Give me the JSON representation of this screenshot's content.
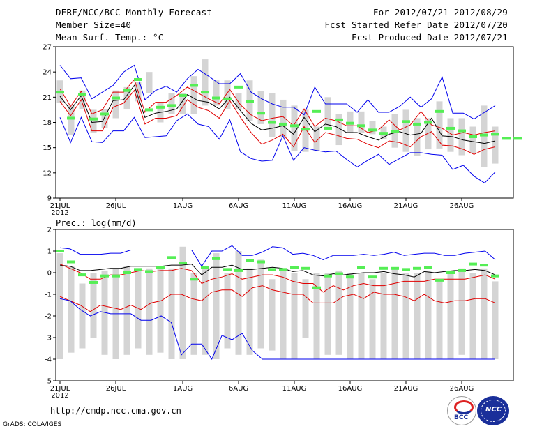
{
  "header": {
    "title": "DERF/NCC/BCC Monthly Forecast",
    "member_size": "Member Size=40",
    "variable": "Mean Surf. Temp.: °C",
    "period": "For 2012/07/21-2012/08/29",
    "started": "Fcst Started Refer Date 2012/07/20",
    "produced": "Fcst Produced Date 2012/07/21"
  },
  "footer": {
    "url": "http://cmdp.ncc.cma.gov.cn",
    "grads": "GrADS: COLA/IGES",
    "logo_bcc": "BCC",
    "logo_ncc": "NCC"
  },
  "colors": {
    "envelope": "#0000ee",
    "spread": "#e00000",
    "mean": "#000000",
    "box": "#d4d4d4",
    "observed": "#55ee55"
  },
  "chart_data": [
    {
      "type": "line",
      "title": "Mean Surf. Temp.: °C",
      "ylim": [
        9,
        27
      ],
      "yticks": [
        9,
        12,
        15,
        18,
        21,
        24,
        27
      ],
      "x_tick_labels": [
        "21JUL",
        "26JUL",
        "1AUG",
        "6AUG",
        "11AUG",
        "16AUG",
        "21AUG",
        "26AUG"
      ],
      "x_tick_days": [
        0,
        5,
        11,
        16,
        21,
        26,
        31,
        36
      ],
      "year_label": "2012",
      "box_min": [
        20.3,
        16.5,
        19.6,
        16.8,
        17.3,
        18.5,
        19.6,
        20.5,
        21.5,
        18.0,
        19.0,
        19.0,
        19.0,
        20.0,
        20.0,
        19.6,
        19.6,
        18.2,
        17.8,
        16.3,
        16.2,
        14.6,
        14.5,
        14.6,
        17.5,
        15.3,
        16.8,
        16.8,
        16.6,
        16.0,
        15.0,
        14.5,
        14.0,
        14.8,
        14.9,
        14.5,
        14.1,
        14.3,
        12.7,
        13.1
      ],
      "box_max": [
        23.0,
        20.0,
        21.8,
        19.5,
        19.6,
        21.8,
        22.2,
        22.8,
        24.0,
        20.3,
        21.5,
        21.5,
        23.5,
        25.5,
        23.0,
        23.0,
        21.5,
        23.0,
        21.7,
        21.5,
        20.7,
        20.0,
        19.5,
        17.5,
        21.0,
        19.0,
        19.3,
        19.3,
        18.2,
        17.5,
        19.0,
        19.5,
        18.5,
        18.5,
        20.5,
        18.5,
        18.5,
        17.5,
        20.0,
        17.5
      ],
      "series": [
        {
          "name": "max",
          "values": [
            24.8,
            23.2,
            23.3,
            20.8,
            21.6,
            22.4,
            24.0,
            24.8,
            20.7,
            21.8,
            22.3,
            21.6,
            23.2,
            24.3,
            23.5,
            22.6,
            22.6,
            23.8,
            21.6,
            20.8,
            20.2,
            19.8,
            19.8,
            18.9,
            22.2,
            20.2,
            20.2,
            20.2,
            19.2,
            20.7,
            19.2,
            19.2,
            19.9,
            21.0,
            19.8,
            20.8,
            23.4,
            19.1,
            19.1,
            18.4,
            19.2,
            20.0
          ]
        },
        {
          "name": "upper",
          "values": [
            22.0,
            19.9,
            21.7,
            19.0,
            19.5,
            21.6,
            21.6,
            23.1,
            19.2,
            20.4,
            20.4,
            21.2,
            22.2,
            21.5,
            20.8,
            20.2,
            21.9,
            20.1,
            18.9,
            18.2,
            18.5,
            18.7,
            17.6,
            19.6,
            17.5,
            18.5,
            18.2,
            17.6,
            17.6,
            16.8,
            17.1,
            18.3,
            17.1,
            17.7,
            19.3,
            17.7,
            17.3,
            16.5,
            16.8,
            16.5,
            16.8,
            17.0
          ]
        },
        {
          "name": "mean",
          "values": [
            21.1,
            19.5,
            21.2,
            18.0,
            18.1,
            20.6,
            20.7,
            22.4,
            18.6,
            19.1,
            19.3,
            19.6,
            21.3,
            20.6,
            20.4,
            19.6,
            21.0,
            19.4,
            17.9,
            17.1,
            17.3,
            17.6,
            16.6,
            18.6,
            16.9,
            17.8,
            17.5,
            16.8,
            16.8,
            16.3,
            15.9,
            16.6,
            16.9,
            16.5,
            16.7,
            18.5,
            16.4,
            16.3,
            15.9,
            15.7,
            15.5,
            15.8
          ]
        },
        {
          "name": "lower",
          "values": [
            20.5,
            18.8,
            20.7,
            17.0,
            17.0,
            19.8,
            20.3,
            21.8,
            17.8,
            18.5,
            18.5,
            18.8,
            20.7,
            19.8,
            19.4,
            18.5,
            20.6,
            18.6,
            16.8,
            15.4,
            15.9,
            16.6,
            15.1,
            17.5,
            15.6,
            16.8,
            16.5,
            16.1,
            16.0,
            15.4,
            15.0,
            15.8,
            15.6,
            15.1,
            16.3,
            16.9,
            15.3,
            15.2,
            14.8,
            14.2,
            14.8,
            15.1
          ]
        },
        {
          "name": "min",
          "values": [
            18.6,
            15.6,
            18.6,
            15.7,
            15.6,
            17.0,
            17.0,
            18.6,
            16.2,
            16.3,
            16.4,
            18.2,
            19.0,
            17.8,
            17.5,
            16.0,
            18.3,
            14.5,
            13.7,
            13.4,
            13.5,
            16.4,
            13.5,
            15.0,
            14.7,
            14.5,
            14.6,
            13.6,
            12.7,
            13.5,
            14.2,
            13.0,
            13.7,
            14.4,
            14.4,
            14.2,
            14.1,
            12.4,
            12.9,
            11.6,
            10.8,
            12.1
          ]
        },
        {
          "name": "observed",
          "values": [
            21.6,
            18.5,
            21.3,
            18.4,
            19.0,
            20.9,
            21.8,
            23.1,
            19.5,
            19.8,
            20.0,
            21.2,
            22.4,
            21.6,
            20.9,
            20.8,
            22.2,
            20.5,
            19.1,
            18.0,
            17.8,
            17.6,
            17.2,
            19.3,
            17.3,
            18.3,
            17.9,
            17.6,
            17.1,
            16.7,
            16.9,
            18.1,
            17.8,
            18.0,
            19.3,
            17.3,
            17.0,
            16.3,
            16.5,
            16.6,
            16.1,
            16.1
          ]
        }
      ]
    },
    {
      "type": "line",
      "title": "Prec.: log(mm/d)",
      "ylim": [
        -5,
        2
      ],
      "yticks": [
        -5,
        -4,
        -3,
        -2,
        -1,
        0,
        1,
        2
      ],
      "x_tick_labels": [
        "21JUL",
        "26JUL",
        "1AUG",
        "6AUG",
        "11AUG",
        "16AUG",
        "21AUG",
        "26AUG"
      ],
      "x_tick_days": [
        0,
        5,
        11,
        16,
        21,
        26,
        31,
        36
      ],
      "year_label": "2012",
      "box_min": [
        -4.0,
        -3.7,
        -3.5,
        -3.0,
        -3.8,
        -4.0,
        -3.8,
        -3.5,
        -3.8,
        -3.7,
        -4.0,
        -4.0,
        -3.8,
        -3.8,
        -4.0,
        -3.5,
        -3.8,
        -3.8,
        -3.5,
        -3.6,
        -4.0,
        -4.0,
        -3.0,
        -4.0,
        -3.8,
        -3.8,
        -4.0,
        -4.0,
        -4.0,
        -4.0,
        -4.0,
        -4.0,
        -4.0,
        -4.0,
        -4.0,
        -4.0,
        -3.8,
        -4.0,
        -4.0,
        -4.0
      ],
      "box_max": [
        0.9,
        0.3,
        -0.5,
        0.0,
        0.1,
        0.2,
        0.3,
        0.1,
        0.2,
        0.3,
        0.2,
        1.2,
        0.0,
        0.2,
        0.9,
        0.0,
        1.0,
        0.2,
        0.6,
        -0.3,
        0.2,
        0.0,
        -0.3,
        0.0,
        0.0,
        0.1,
        0.0,
        0.0,
        -0.3,
        0.0,
        0.2,
        0.0,
        0.0,
        0.1,
        -0.3,
        0.1,
        0.2,
        0.0,
        0.2,
        -0.4
      ],
      "series": [
        {
          "name": "max",
          "values": [
            1.15,
            1.1,
            0.85,
            0.85,
            0.85,
            0.9,
            0.9,
            1.05,
            1.05,
            1.05,
            1.05,
            1.05,
            1.05,
            1.05,
            0.3,
            1.0,
            1.0,
            1.25,
            0.8,
            0.8,
            0.95,
            1.2,
            1.15,
            0.85,
            0.9,
            0.8,
            0.6,
            0.8,
            0.8,
            0.8,
            0.85,
            0.8,
            0.85,
            0.95,
            0.8,
            0.85,
            0.9,
            0.9,
            0.8,
            0.8,
            0.9,
            0.95,
            1.0,
            0.6
          ]
        },
        {
          "name": "mean",
          "values": [
            0.35,
            0.3,
            0.1,
            0.1,
            0.15,
            0.2,
            0.2,
            0.3,
            0.3,
            0.3,
            0.3,
            0.35,
            0.35,
            0.4,
            -0.1,
            0.25,
            0.25,
            0.35,
            0.15,
            0.15,
            0.2,
            0.25,
            0.2,
            0.05,
            0.1,
            -0.1,
            -0.15,
            -0.05,
            -0.1,
            -0.05,
            0.0,
            0.0,
            0.05,
            -0.05,
            -0.1,
            -0.2,
            0.05,
            0.0,
            0.05,
            0.1,
            0.1,
            0.15,
            0.1,
            -0.1
          ]
        },
        {
          "name": "upper",
          "values": [
            0.4,
            0.2,
            0.0,
            -0.3,
            -0.3,
            -0.1,
            -0.1,
            0.0,
            0.1,
            0.05,
            0.1,
            0.1,
            0.2,
            0.1,
            -0.5,
            -0.3,
            -0.2,
            -0.05,
            -0.3,
            -0.2,
            -0.1,
            -0.1,
            -0.2,
            -0.4,
            -0.5,
            -0.5,
            -0.9,
            -0.6,
            -0.8,
            -0.6,
            -0.5,
            -0.6,
            -0.6,
            -0.5,
            -0.4,
            -0.4,
            -0.4,
            -0.3,
            -0.3,
            -0.3,
            -0.3,
            -0.2,
            -0.1,
            -0.3
          ]
        },
        {
          "name": "lower",
          "values": [
            -1.1,
            -1.3,
            -1.5,
            -1.8,
            -1.5,
            -1.6,
            -1.7,
            -1.5,
            -1.7,
            -1.4,
            -1.3,
            -1.0,
            -1.0,
            -1.2,
            -1.3,
            -0.9,
            -0.8,
            -0.8,
            -1.1,
            -0.7,
            -0.6,
            -0.8,
            -0.9,
            -1.0,
            -1.0,
            -1.4,
            -1.4,
            -1.4,
            -1.1,
            -1.0,
            -1.2,
            -0.9,
            -1.0,
            -1.0,
            -1.1,
            -1.3,
            -1.0,
            -1.3,
            -1.4,
            -1.3,
            -1.3,
            -1.2,
            -1.2,
            -1.4
          ]
        },
        {
          "name": "min",
          "values": [
            -1.2,
            -1.3,
            -1.7,
            -2.0,
            -1.8,
            -1.9,
            -1.9,
            -1.9,
            -2.2,
            -2.2,
            -2.0,
            -2.3,
            -3.8,
            -3.3,
            -3.3,
            -4.0,
            -2.9,
            -3.1,
            -2.8,
            -3.6,
            -4.0,
            -4.0,
            -4.0,
            -4.0,
            -4.0,
            -4.0,
            -4.0,
            -4.0,
            -4.0,
            -4.0,
            -4.0,
            -4.0,
            -4.0,
            -4.0,
            -4.0,
            -4.0,
            -4.0,
            -4.0,
            -4.0,
            -4.0,
            -4.0,
            -4.0,
            -4.0,
            -4.0
          ]
        },
        {
          "name": "observed",
          "values": [
            1.0,
            0.5,
            -0.1,
            -0.45,
            -0.15,
            -0.15,
            0.0,
            0.15,
            0.05,
            0.25,
            0.7,
            0.45,
            -0.3,
            0.25,
            0.65,
            0.15,
            0.1,
            0.55,
            0.5,
            0.15,
            0.15,
            0.25,
            0.2,
            -0.7,
            -0.15,
            -0.05,
            -0.2,
            0.25,
            -0.2,
            0.2,
            0.2,
            0.15,
            0.2,
            0.25,
            -0.35,
            0.0,
            0.1,
            0.4,
            0.35,
            -0.15
          ]
        }
      ]
    }
  ]
}
